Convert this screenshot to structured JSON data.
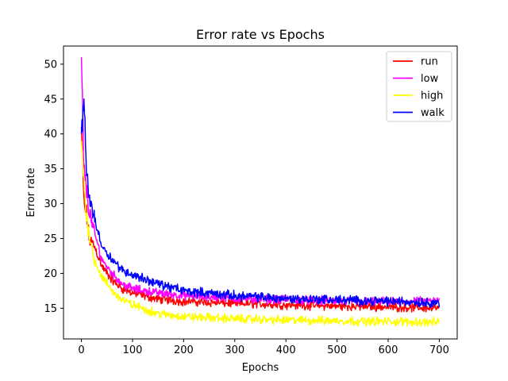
{
  "chart_data": {
    "type": "line",
    "title": "Error rate vs Epochs",
    "xlabel": "Epochs",
    "ylabel": "Error rate",
    "xlim": [
      -35,
      735
    ],
    "ylim": [
      10.6,
      52.6
    ],
    "xticks": [
      0,
      100,
      200,
      300,
      400,
      500,
      600,
      700
    ],
    "yticks": [
      15,
      20,
      25,
      30,
      35,
      40,
      45,
      50
    ],
    "grid": false,
    "legend_position": "top-right",
    "series": [
      {
        "name": "run",
        "color": "#ff0000",
        "keypoints": [
          [
            0,
            41
          ],
          [
            5,
            30
          ],
          [
            10,
            28.5
          ],
          [
            15,
            25
          ],
          [
            25,
            24
          ],
          [
            40,
            21
          ],
          [
            60,
            19
          ],
          [
            80,
            17.8
          ],
          [
            100,
            17.2
          ],
          [
            150,
            16.3
          ],
          [
            200,
            16
          ],
          [
            300,
            15.7
          ],
          [
            400,
            15.5
          ],
          [
            500,
            15.3
          ],
          [
            600,
            15.2
          ],
          [
            700,
            15.0
          ]
        ],
        "noise": 0.55
      },
      {
        "name": "low",
        "color": "#ff00ff",
        "keypoints": [
          [
            0,
            51
          ],
          [
            5,
            35
          ],
          [
            10,
            32
          ],
          [
            15,
            29
          ],
          [
            25,
            26
          ],
          [
            40,
            22
          ],
          [
            60,
            20
          ],
          [
            80,
            18.5
          ],
          [
            100,
            17.8
          ],
          [
            150,
            17.2
          ],
          [
            200,
            16.8
          ],
          [
            300,
            16.4
          ],
          [
            400,
            16.2
          ],
          [
            500,
            16.0
          ],
          [
            600,
            15.9
          ],
          [
            700,
            16.0
          ]
        ],
        "noise": 0.55
      },
      {
        "name": "high",
        "color": "#ffff00",
        "keypoints": [
          [
            0,
            39
          ],
          [
            5,
            33
          ],
          [
            10,
            28
          ],
          [
            15,
            26
          ],
          [
            25,
            22
          ],
          [
            40,
            19.5
          ],
          [
            60,
            17.5
          ],
          [
            80,
            16.2
          ],
          [
            100,
            15.5
          ],
          [
            150,
            14.2
          ],
          [
            200,
            13.8
          ],
          [
            300,
            13.5
          ],
          [
            400,
            13.3
          ],
          [
            500,
            13.2
          ],
          [
            600,
            13.1
          ],
          [
            700,
            13.0
          ]
        ],
        "noise": 0.55
      },
      {
        "name": "walk",
        "color": "#0000ff",
        "keypoints": [
          [
            0,
            40
          ],
          [
            5,
            45
          ],
          [
            10,
            35
          ],
          [
            15,
            31
          ],
          [
            25,
            28
          ],
          [
            40,
            24
          ],
          [
            60,
            22
          ],
          [
            80,
            20.5
          ],
          [
            100,
            19.8
          ],
          [
            150,
            18.5
          ],
          [
            200,
            17.5
          ],
          [
            300,
            16.8
          ],
          [
            400,
            16.4
          ],
          [
            500,
            16.2
          ],
          [
            600,
            16.0
          ],
          [
            700,
            15.8
          ]
        ],
        "noise": 0.6
      }
    ]
  }
}
